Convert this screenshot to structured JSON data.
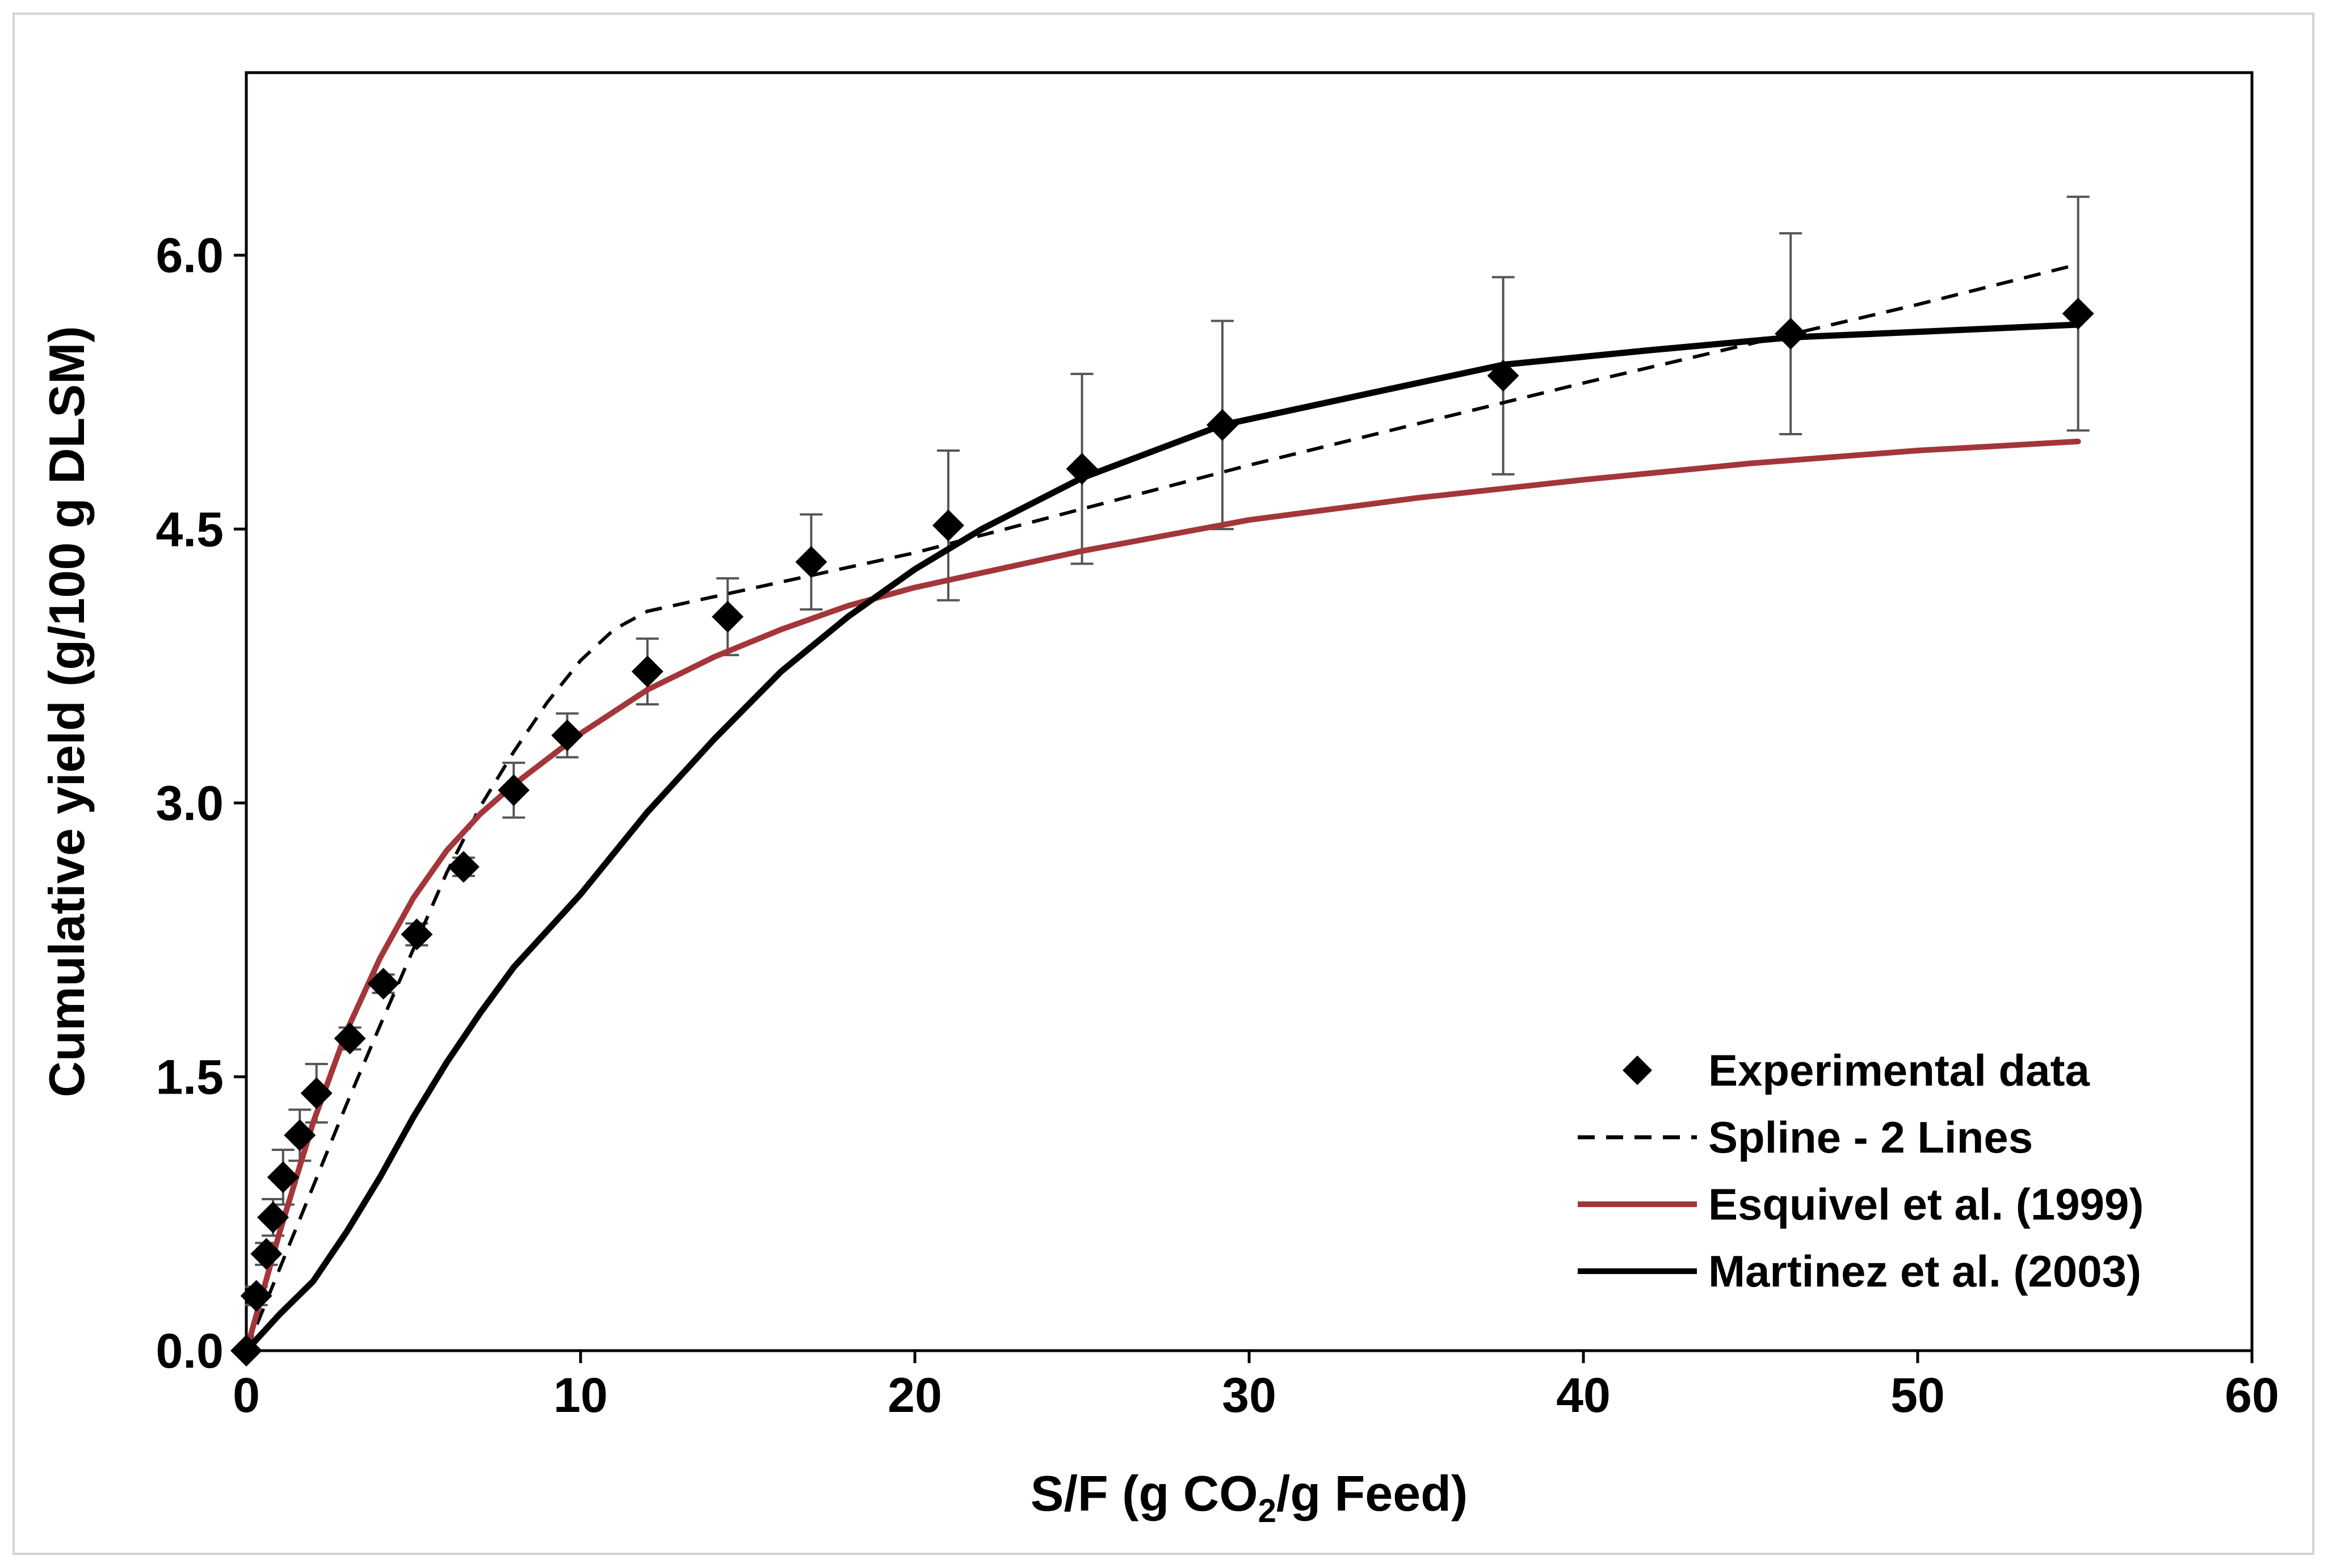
{
  "chart_data": {
    "type": "scatter",
    "title": "",
    "xlabel": {
      "main": "S/F (g CO",
      "sub": "2",
      "rest": "/g Feed)"
    },
    "ylabel": "Cumulative yield (g/100 g DLSM)",
    "xlim": [
      0,
      60
    ],
    "ylim": [
      0,
      7.0
    ],
    "x_ticks": [
      0,
      10,
      20,
      30,
      40,
      50,
      60
    ],
    "x_tick_labels": [
      "0",
      "10",
      "20",
      "30",
      "40",
      "50",
      "60"
    ],
    "y_ticks": [
      0,
      1.5,
      3.0,
      4.5,
      6.0
    ],
    "y_tick_labels": [
      "0.0",
      "1.5",
      "3.0",
      "4.5",
      "6.0"
    ],
    "grid": false,
    "legend_position": "bottom-right",
    "series": [
      {
        "name": "Experimental data",
        "kind": "markers",
        "color": "#000000",
        "x": [
          0,
          0.3,
          0.6,
          0.8,
          1.1,
          1.6,
          2.1,
          3.1,
          4.1,
          5.1,
          6.5,
          8.0,
          9.6,
          12.0,
          14.4,
          16.9,
          21.0,
          25.0,
          29.2,
          37.6,
          46.2,
          54.8
        ],
        "y": [
          0,
          0.3,
          0.53,
          0.73,
          0.95,
          1.18,
          1.41,
          1.71,
          2.01,
          2.28,
          2.65,
          3.07,
          3.37,
          3.72,
          4.02,
          4.32,
          4.52,
          4.83,
          5.07,
          5.34,
          5.57,
          5.68
        ],
        "err": [
          0,
          0.05,
          0.06,
          0.1,
          0.15,
          0.14,
          0.16,
          0.06,
          0.05,
          0.06,
          0.05,
          0.15,
          0.12,
          0.18,
          0.21,
          0.26,
          0.41,
          0.52,
          0.57,
          0.54,
          0.55,
          0.64
        ]
      },
      {
        "name": "Spline - 2 Lines",
        "kind": "dashed",
        "color": "#000000",
        "x": [
          0,
          1.0,
          2.0,
          3.0,
          4.0,
          5.0,
          6.0,
          7.0,
          8.0,
          9.0,
          10.0,
          11.0,
          12.0,
          20.0,
          30.0,
          40.0,
          50.0,
          54.8
        ],
        "y": [
          0,
          0.45,
          0.9,
          1.35,
          1.78,
          2.2,
          2.62,
          2.98,
          3.28,
          3.55,
          3.78,
          3.95,
          4.05,
          4.37,
          4.85,
          5.3,
          5.73,
          5.95
        ]
      },
      {
        "name": "Esquivel et al. (1999)",
        "kind": "line",
        "color": "#a3363a",
        "x": [
          0,
          1.0,
          2.0,
          3.0,
          4.0,
          5.0,
          6.0,
          7.0,
          8.0,
          10.0,
          12.0,
          14.0,
          16.0,
          18.0,
          20.0,
          25.0,
          30.0,
          35.0,
          40.0,
          45.0,
          50.0,
          54.8
        ],
        "y": [
          0,
          0.65,
          1.25,
          1.75,
          2.15,
          2.48,
          2.74,
          2.94,
          3.1,
          3.38,
          3.62,
          3.8,
          3.95,
          4.08,
          4.18,
          4.38,
          4.55,
          4.67,
          4.77,
          4.86,
          4.93,
          4.98
        ]
      },
      {
        "name": "Martinez et al. (2003)",
        "kind": "line",
        "color": "#000000",
        "x": [
          0,
          1.0,
          2.0,
          3.0,
          4.0,
          5.0,
          6.0,
          7.0,
          8.0,
          10.0,
          12.0,
          14.0,
          16.0,
          18.0,
          20.0,
          22.0,
          25.0,
          29.2,
          33.0,
          37.6,
          42.0,
          46.2,
          50.0,
          54.8
        ],
        "y": [
          0,
          0.2,
          0.38,
          0.65,
          0.95,
          1.28,
          1.58,
          1.85,
          2.1,
          2.5,
          2.95,
          3.35,
          3.72,
          4.02,
          4.28,
          4.5,
          4.78,
          5.07,
          5.22,
          5.4,
          5.48,
          5.55,
          5.58,
          5.62
        ]
      }
    ]
  }
}
